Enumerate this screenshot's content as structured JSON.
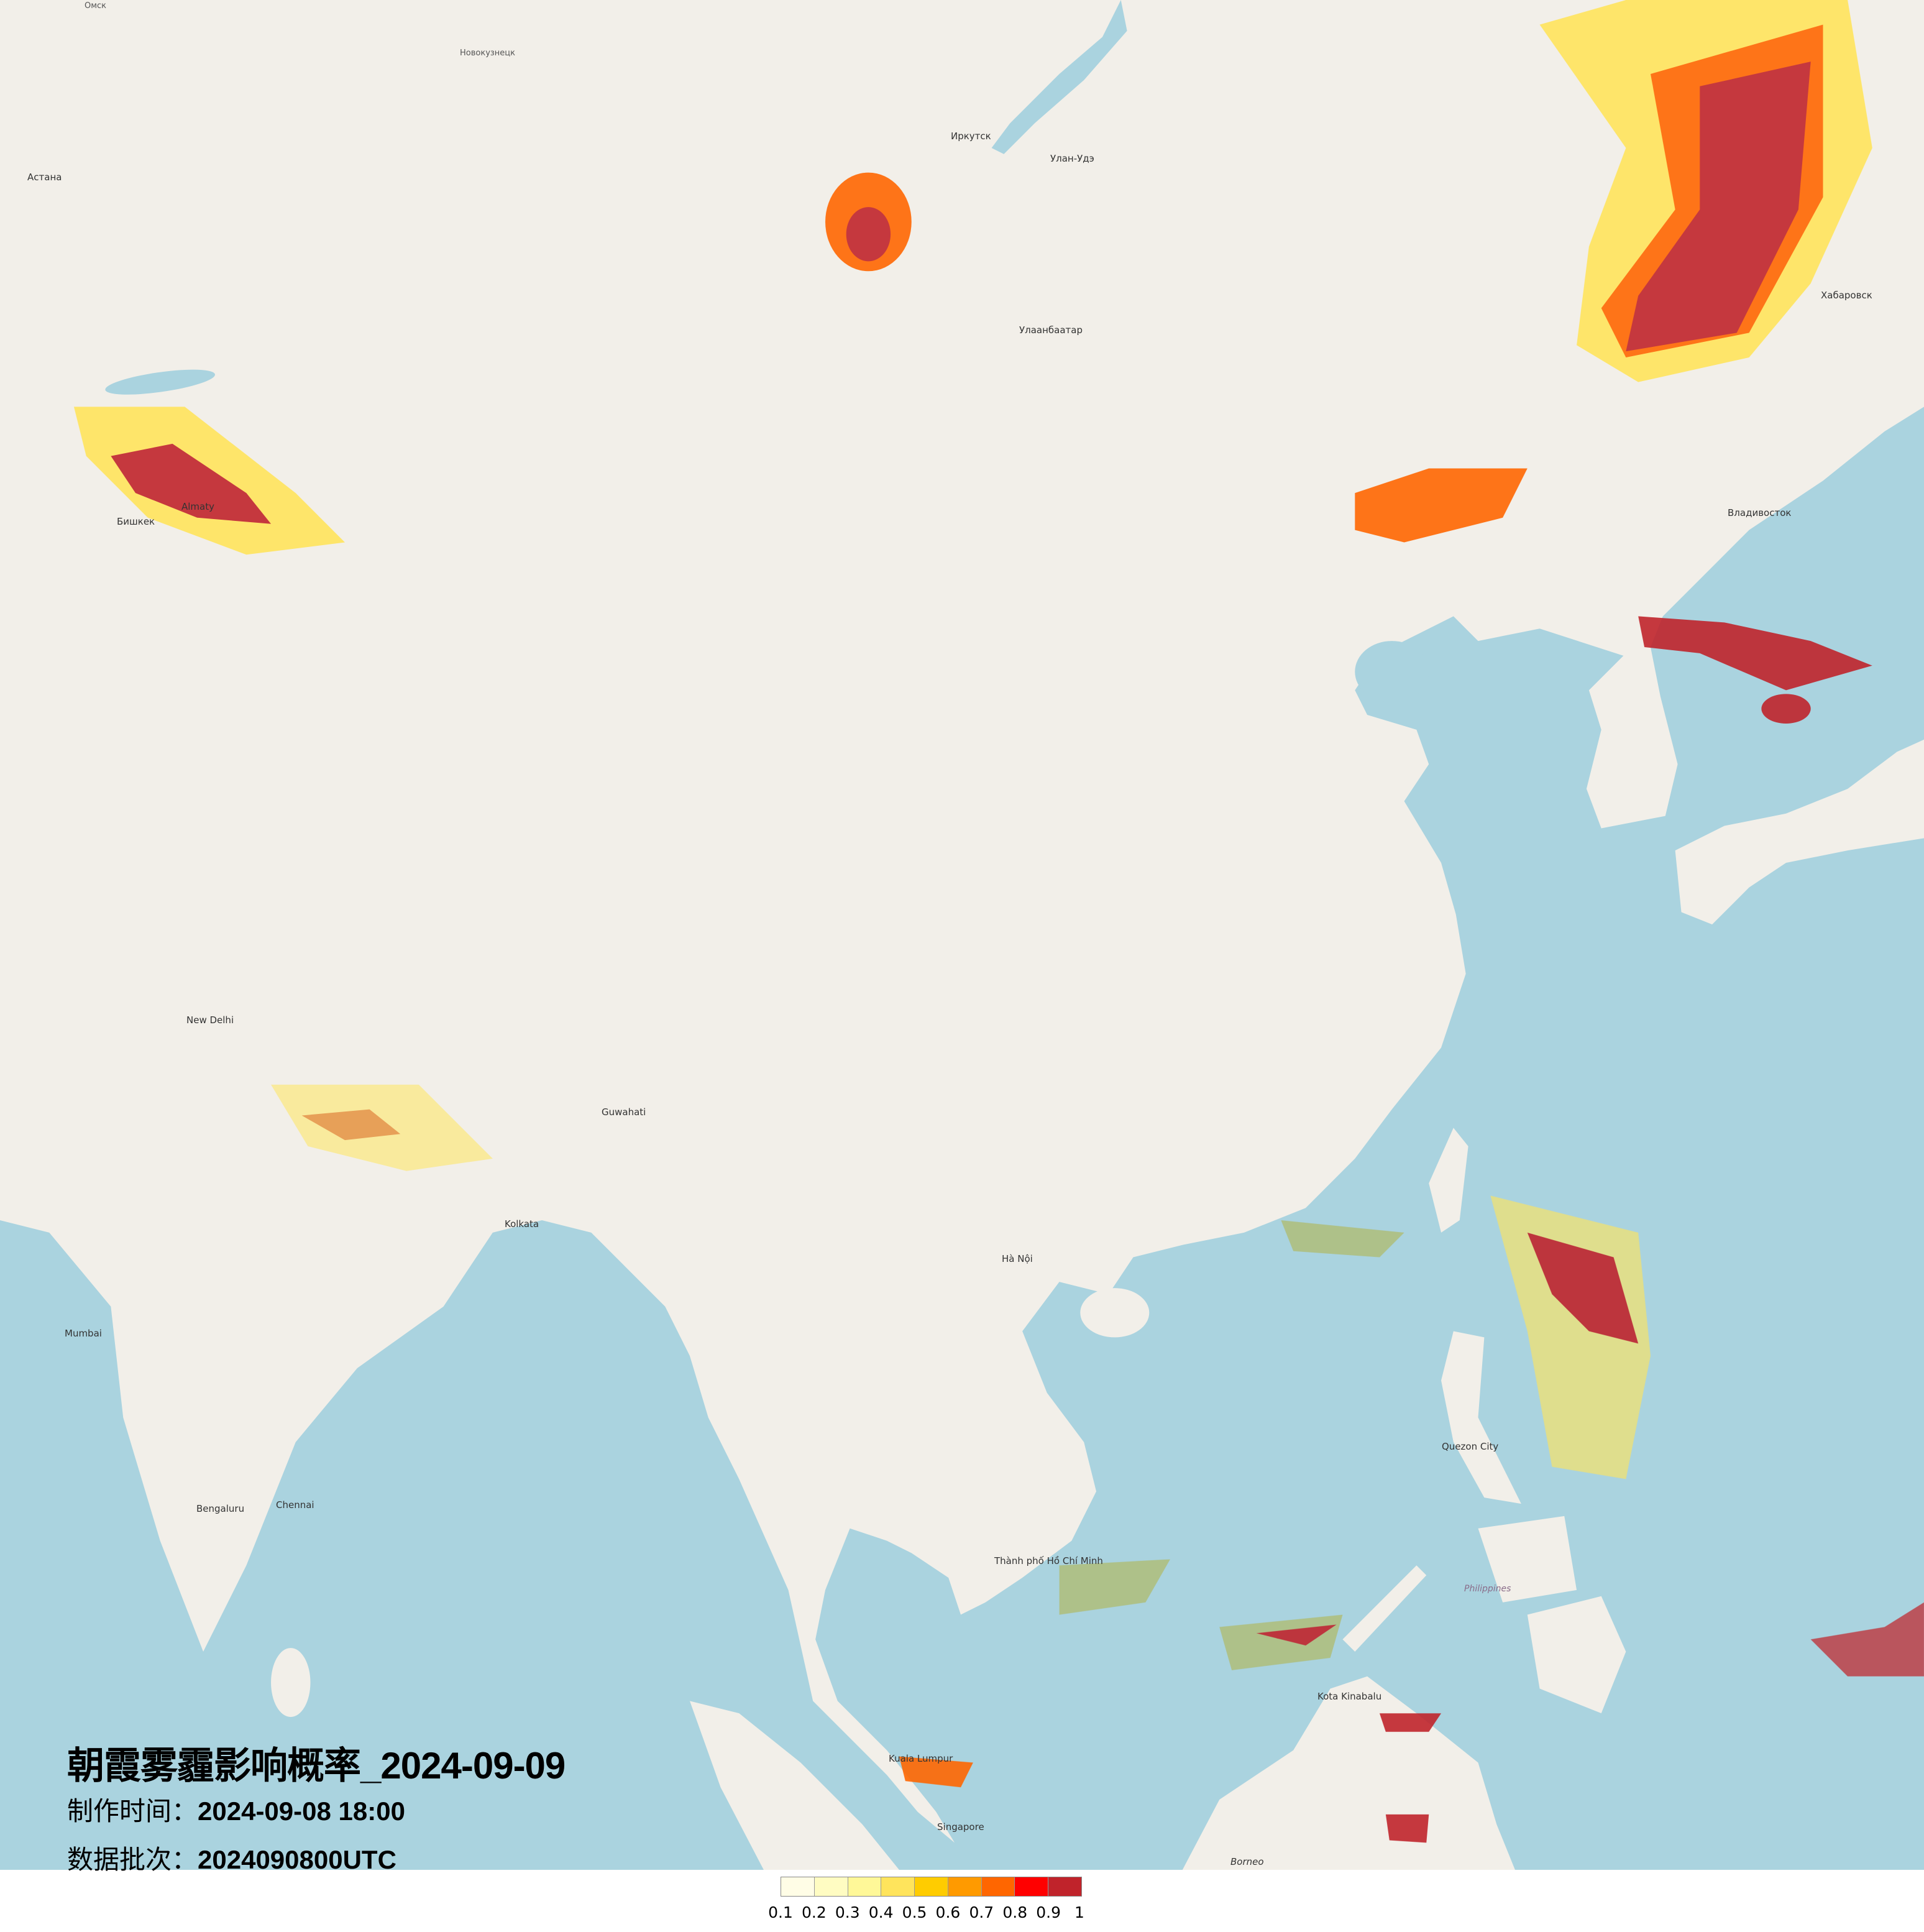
{
  "title": "朝霞雾霾影响概率_2024-09-09",
  "production_time": {
    "label": "制作时间：",
    "value": "2024-09-08 18:00"
  },
  "data_batch": {
    "label": "数据批次：",
    "value": "2024090800UTC"
  },
  "legend": {
    "ticks": [
      "0.1",
      "0.2",
      "0.3",
      "0.4",
      "0.5",
      "0.6",
      "0.7",
      "0.8",
      "0.9",
      "1"
    ],
    "colors": [
      "#fffde6",
      "#fffcc2",
      "#fff898",
      "#ffe45c",
      "#ffcc00",
      "#ff9a00",
      "#ff6600",
      "#ff0000",
      "#c0232b"
    ]
  },
  "map": {
    "land_color": "#f2efe9",
    "sea_color": "#aad3df",
    "labels": {
      "omsk": "Омск",
      "novokuznetsk": "Новокузнецк",
      "irkutsk": "Иркутск",
      "ulan_ude": "Улан-Удэ",
      "ulaanbaatar": "Улаанбаатар",
      "astana": "Астана",
      "almaty": "Almaty",
      "bishkek": "Бишкек",
      "khabarovsk": "Хабаровск",
      "vladivostok": "Владивосток",
      "new_delhi": "New Delhi",
      "kolkata": "Kolkata",
      "mumbai": "Mumbai",
      "bengaluru": "Bengaluru",
      "chennai": "Chennai",
      "ha_noi": "Hà Nội",
      "ho_chi_minh": "Thành phố Hồ Chí Minh",
      "kuala_lumpur": "Kuala Lumpur",
      "singapore": "Singapore",
      "quezon_city": "Quezon City",
      "philippines": "Philippines",
      "borneo": "Borneo",
      "guwahati": "Guwahati",
      "kota_kinabalu": "Kota Kinabalu"
    }
  }
}
